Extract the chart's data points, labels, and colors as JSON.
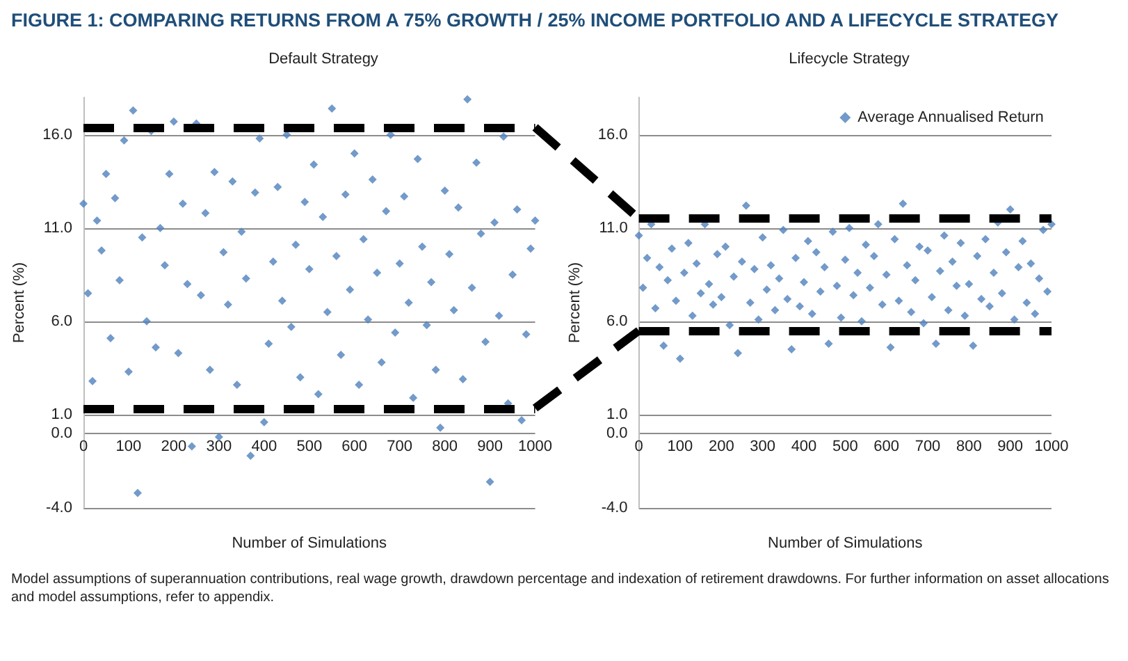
{
  "chart_data": [
    {
      "type": "scatter",
      "title": "FIGURE 1: COMPARING RETURNS FROM A 75% GROWTH / 25% INCOME PORTFOLIO AND A LIFECYCLE STRATEGY",
      "subtitle": "Default Strategy",
      "xlabel": "Number of Simulations",
      "ylabel": "Percent (%)",
      "annotations": [
        "Model assumptions of superannuation contributions, real wage growth, drawdown percentage and indexation of retirement drawdowns. For further information on asset allocations and model assumptions, refer to appendix."
      ],
      "series": [
        {
          "color": "#4f81bd",
          "x": [
            0,
            10,
            20,
            30,
            40,
            50,
            60,
            70,
            80,
            90,
            100,
            110,
            120,
            130,
            140,
            150,
            160,
            170,
            180,
            190,
            200,
            210,
            220,
            230,
            240,
            250,
            260,
            270,
            280,
            290,
            300,
            310,
            320,
            330,
            340,
            350,
            360,
            370,
            380,
            390,
            400,
            410,
            420,
            430,
            440,
            450,
            460,
            470,
            480,
            490,
            500,
            510,
            520,
            530,
            540,
            550,
            560,
            570,
            580,
            590,
            600,
            610,
            620,
            630,
            640,
            650,
            660,
            670,
            680,
            690,
            700,
            710,
            720,
            730,
            740,
            750,
            760,
            770,
            780,
            790,
            800,
            810,
            820,
            830,
            840,
            850,
            860,
            870,
            880,
            890,
            900,
            910,
            920,
            930,
            940,
            950,
            960,
            970,
            980,
            990,
            1000
          ],
          "values": [
            12.3,
            7.5,
            2.8,
            11.4,
            9.8,
            13.9,
            5.1,
            12.6,
            8.2,
            15.7,
            3.3,
            17.3,
            -3.2,
            10.5,
            6.0,
            16.2,
            4.6,
            11.0,
            9.0,
            13.9,
            16.7,
            4.3,
            12.3,
            8.0,
            -0.7,
            16.6,
            7.4,
            11.8,
            3.4,
            14.0,
            -0.2,
            9.7,
            6.9,
            13.5,
            2.6,
            10.8,
            8.3,
            -1.2,
            12.9,
            15.8,
            0.6,
            4.8,
            9.2,
            13.2,
            7.1,
            16.0,
            5.7,
            10.1,
            3.0,
            12.4,
            8.8,
            14.4,
            2.1,
            11.6,
            6.5,
            17.4,
            9.5,
            4.2,
            12.8,
            7.7,
            15.0,
            2.6,
            10.4,
            6.1,
            13.6,
            8.6,
            3.8,
            11.9,
            16.0,
            5.4,
            9.1,
            12.7,
            7.0,
            1.9,
            14.7,
            10.0,
            5.8,
            8.1,
            3.4,
            0.3,
            13.0,
            9.6,
            6.6,
            12.1,
            2.9,
            17.9,
            7.8,
            14.5,
            10.7,
            4.9,
            -2.6,
            11.3,
            6.3,
            15.9,
            1.6,
            8.5,
            12.0,
            0.7,
            5.3,
            9.9,
            11.4
          ]
        }
      ],
      "xlim": [
        0,
        1000
      ],
      "xticks": [
        0,
        100,
        200,
        300,
        400,
        500,
        600,
        700,
        800,
        900,
        1000
      ],
      "ylim": [
        -4,
        18
      ],
      "yticks": [
        {
          "value": -4,
          "label": "-4.0"
        },
        {
          "value": 0,
          "label": "0.0"
        },
        {
          "value": 1,
          "label": "1.0"
        },
        {
          "value": 6,
          "label": "6.0"
        },
        {
          "value": 11,
          "label": "11.0"
        },
        {
          "value": 16,
          "label": "16.0"
        }
      ],
      "grid": "y",
      "marker": "diamond",
      "ref_lines": [
        {
          "axis": "y",
          "value": 16.4,
          "color": "#000000",
          "line_style": "dashed"
        },
        {
          "axis": "y",
          "value": 1.35,
          "color": "#000000",
          "line_style": "dashed"
        }
      ]
    },
    {
      "type": "scatter",
      "subtitle": "Lifecycle Strategy",
      "xlabel": "Number of Simulations",
      "ylabel": "Percent (%)",
      "series": [
        {
          "name": "Average Annualised Return",
          "color": "#4f81bd",
          "x": [
            0,
            10,
            20,
            30,
            40,
            50,
            60,
            70,
            80,
            90,
            100,
            110,
            120,
            130,
            140,
            150,
            160,
            170,
            180,
            190,
            200,
            210,
            220,
            230,
            240,
            250,
            260,
            270,
            280,
            290,
            300,
            310,
            320,
            330,
            340,
            350,
            360,
            370,
            380,
            390,
            400,
            410,
            420,
            430,
            440,
            450,
            460,
            470,
            480,
            490,
            500,
            510,
            520,
            530,
            540,
            550,
            560,
            570,
            580,
            590,
            600,
            610,
            620,
            630,
            640,
            650,
            660,
            670,
            680,
            690,
            700,
            710,
            720,
            730,
            740,
            750,
            760,
            770,
            780,
            790,
            800,
            810,
            820,
            830,
            840,
            850,
            860,
            870,
            880,
            890,
            900,
            910,
            920,
            930,
            940,
            950,
            960,
            970,
            980,
            990,
            1000
          ],
          "values": [
            10.6,
            7.8,
            9.4,
            11.2,
            6.7,
            8.9,
            4.7,
            8.2,
            9.9,
            7.1,
            4.0,
            8.6,
            10.2,
            6.3,
            9.1,
            7.5,
            11.2,
            8.0,
            6.9,
            9.6,
            7.3,
            10.0,
            5.8,
            8.4,
            4.3,
            9.2,
            12.2,
            7.0,
            8.8,
            6.1,
            10.5,
            7.7,
            9.0,
            6.6,
            8.3,
            10.9,
            7.2,
            4.5,
            9.4,
            6.8,
            8.1,
            10.3,
            6.4,
            9.7,
            7.6,
            8.9,
            4.8,
            10.8,
            7.9,
            6.2,
            9.3,
            11.0,
            7.4,
            8.6,
            6.0,
            10.1,
            7.8,
            9.5,
            11.2,
            6.9,
            8.5,
            4.6,
            10.4,
            7.1,
            12.3,
            9.0,
            6.5,
            8.2,
            10.0,
            5.9,
            9.8,
            7.3,
            4.8,
            8.7,
            10.6,
            6.6,
            9.2,
            7.9,
            10.2,
            6.3,
            8.0,
            4.7,
            9.5,
            7.2,
            10.4,
            6.8,
            8.6,
            11.3,
            7.5,
            9.7,
            12.0,
            6.1,
            8.9,
            10.3,
            7.0,
            9.1,
            6.4,
            8.3,
            10.9,
            7.6,
            11.2
          ]
        }
      ],
      "xlim": [
        0,
        1000
      ],
      "xticks": [
        0,
        100,
        200,
        300,
        400,
        500,
        600,
        700,
        800,
        900,
        1000
      ],
      "ylim": [
        -4,
        18
      ],
      "yticks": [
        {
          "value": -4,
          "label": "-4.0"
        },
        {
          "value": 0,
          "label": "0.0"
        },
        {
          "value": 1,
          "label": "1.0"
        },
        {
          "value": 6,
          "label": "6.0"
        },
        {
          "value": 11,
          "label": "11.0"
        },
        {
          "value": 16,
          "label": "16.0"
        }
      ],
      "grid": "y",
      "marker": "diamond",
      "legend": "top right",
      "ref_lines": [
        {
          "axis": "y",
          "value": 11.5,
          "color": "#000000",
          "line_style": "dashed"
        },
        {
          "axis": "y",
          "value": 5.5,
          "color": "#000000",
          "line_style": "dashed"
        }
      ]
    }
  ]
}
